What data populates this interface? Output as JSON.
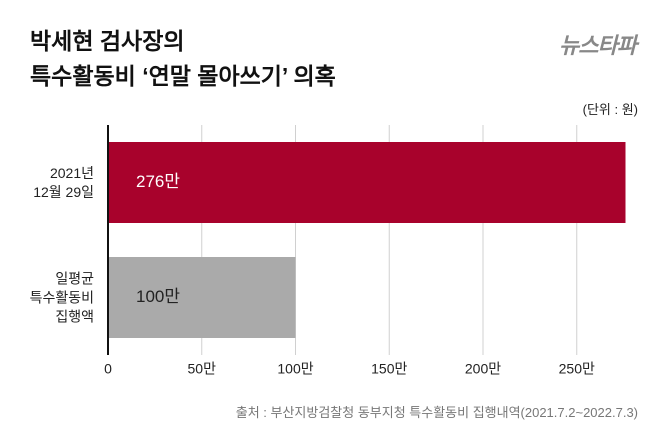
{
  "logo": "뉴스타파",
  "chart_data": {
    "type": "bar",
    "orientation": "horizontal",
    "title": [
      "박세현 검사장의",
      "특수활동비 ‘연말 몰아쓰기’ 의혹"
    ],
    "unit_note": "(단위 : 원)",
    "source": "출처 : 부산지방검찰청 동부지청 특수활동비 집행내역(2021.7.2~2022.7.3)",
    "categories": [
      "2021년\n12월 29일",
      "일평균\n특수활동비\n집행액"
    ],
    "values": [
      276,
      100
    ],
    "value_labels": [
      "276만",
      "100만"
    ],
    "colors": [
      "#a8022c",
      "#aaaaaa"
    ],
    "xlim": [
      0,
      280
    ],
    "xticks": [
      0,
      {
        "value": 50,
        "label": "50만"
      },
      {
        "value": 100,
        "label": "100만"
      },
      {
        "value": 150,
        "label": "150만"
      },
      {
        "value": 200,
        "label": "200만"
      },
      {
        "value": 250,
        "label": "250만"
      }
    ],
    "grid": true
  }
}
